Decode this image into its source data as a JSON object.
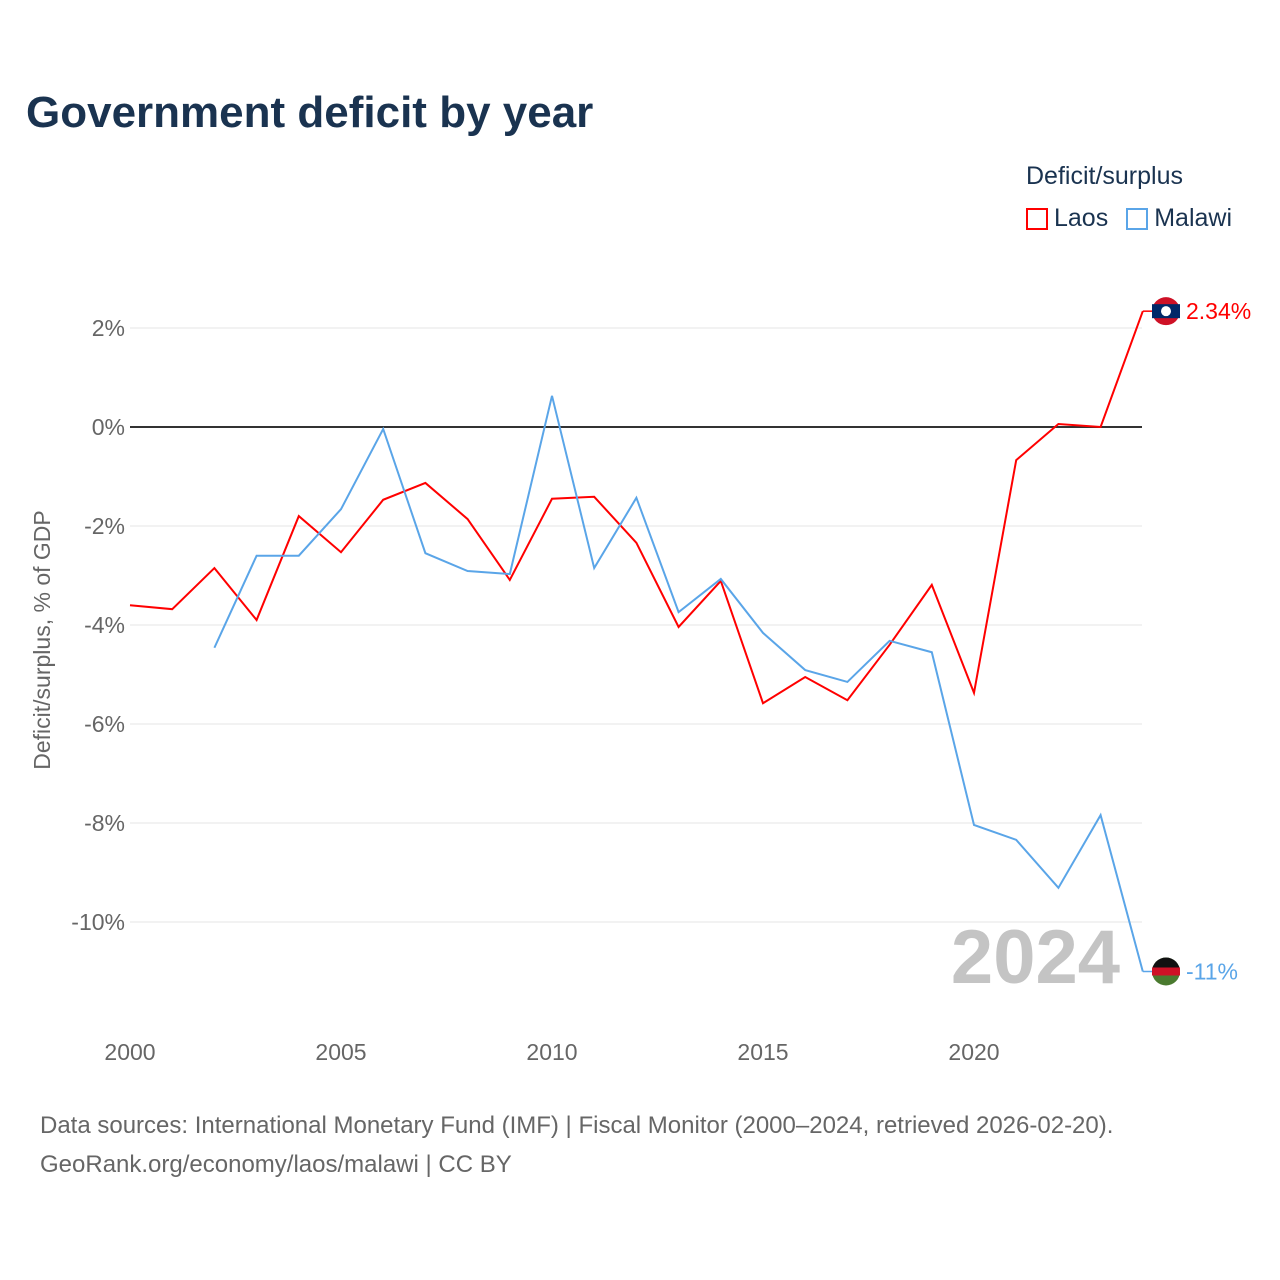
{
  "title": "Government deficit by year",
  "legend_title": "Deficit/surplus",
  "sources_line1": "Data sources: International Monetary Fund (IMF) | Fiscal Monitor (2000–2024, retrieved 2026-02-20).",
  "sources_line2": "GeoRank.org/economy/laos/malawi | CC BY",
  "year_watermark": "2024",
  "chart_data": {
    "type": "line",
    "title": "Government deficit by year",
    "xlabel": "",
    "ylabel": "Deficit/surplus, % of GDP",
    "xlim": [
      2000,
      2024
    ],
    "ylim": [
      -11.5,
      2.8
    ],
    "xticks": [
      2000,
      2005,
      2010,
      2015,
      2020
    ],
    "xtick_labels": [
      "2000",
      "2005",
      "2010",
      "2015",
      "2020"
    ],
    "yticks": [
      2,
      0,
      -2,
      -4,
      -6,
      -8,
      -10
    ],
    "ytick_labels": [
      "2%",
      "0%",
      "-2%",
      "-4%",
      "-6%",
      "-8%",
      "-10%"
    ],
    "grid": true,
    "legend_position": "top-right",
    "series": [
      {
        "name": "Laos",
        "color": "#ff0000",
        "end_label": "2.34%",
        "x": [
          2000,
          2001,
          2002,
          2003,
          2004,
          2005,
          2006,
          2007,
          2008,
          2009,
          2010,
          2011,
          2012,
          2013,
          2014,
          2015,
          2016,
          2017,
          2018,
          2019,
          2020,
          2021,
          2022,
          2023,
          2024
        ],
        "values": [
          -3.6,
          -3.68,
          -2.85,
          -3.9,
          -1.8,
          -2.53,
          -1.47,
          -1.13,
          -1.86,
          -3.09,
          -1.45,
          -1.41,
          -2.34,
          -4.04,
          -3.11,
          -5.58,
          -5.05,
          -5.52,
          -4.4,
          -3.19,
          -5.37,
          -0.67,
          0.06,
          0.0,
          2.34
        ]
      },
      {
        "name": "Malawi",
        "color": "#5aa5e8",
        "end_label": "-11%",
        "x": [
          2002,
          2003,
          2004,
          2005,
          2006,
          2007,
          2008,
          2009,
          2010,
          2011,
          2012,
          2013,
          2014,
          2015,
          2016,
          2017,
          2018,
          2019,
          2020,
          2021,
          2022,
          2023,
          2024
        ],
        "values": [
          -4.46,
          -2.6,
          -2.6,
          -1.66,
          -0.04,
          -2.55,
          -2.91,
          -2.97,
          0.63,
          -2.85,
          -1.43,
          -3.74,
          -3.07,
          -4.16,
          -4.91,
          -5.15,
          -4.32,
          -4.55,
          -8.04,
          -8.34,
          -9.31,
          -7.84,
          -11.0
        ]
      }
    ]
  }
}
